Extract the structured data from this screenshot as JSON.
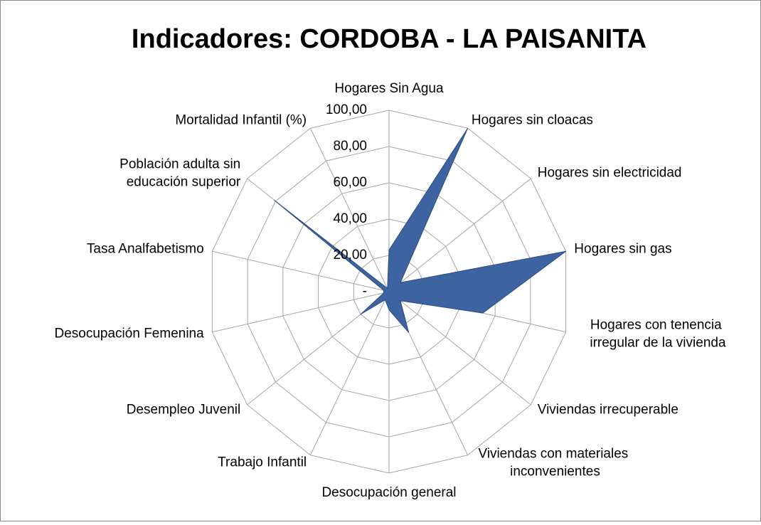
{
  "chart_data": {
    "type": "radar",
    "title": "Indicadores: CORDOBA - LA PAISANITA",
    "categories": [
      "Hogares Sin Agua",
      "Hogares sin cloacas",
      "Hogares sin electricidad",
      "Hogares sin gas",
      "Hogares con tenencia irregular de la vivienda",
      "Viviendas irrecuperable",
      "Viviendas con materiales inconvenientes",
      "Desocupación general",
      "Trabajo Infantil",
      "Desempleo Juvenil",
      "Desocupación Femenina",
      "Tasa Analfabetismo",
      "Población adulta  sin educación superior",
      "Mortalidad Infantil (%)"
    ],
    "values": [
      23,
      100,
      8,
      100,
      53,
      8,
      25,
      10,
      5,
      20,
      3,
      3,
      81,
      2
    ],
    "color": "#3d64a0",
    "ylim": [
      0,
      100
    ],
    "yticks": [
      {
        "value": 0,
        "label": "-"
      },
      {
        "value": 20,
        "label": "20,00"
      },
      {
        "value": 40,
        "label": "40,00"
      },
      {
        "value": 60,
        "label": "60,00"
      },
      {
        "value": 80,
        "label": "80,00"
      },
      {
        "value": 100,
        "label": "100,00"
      }
    ],
    "grid": true
  }
}
